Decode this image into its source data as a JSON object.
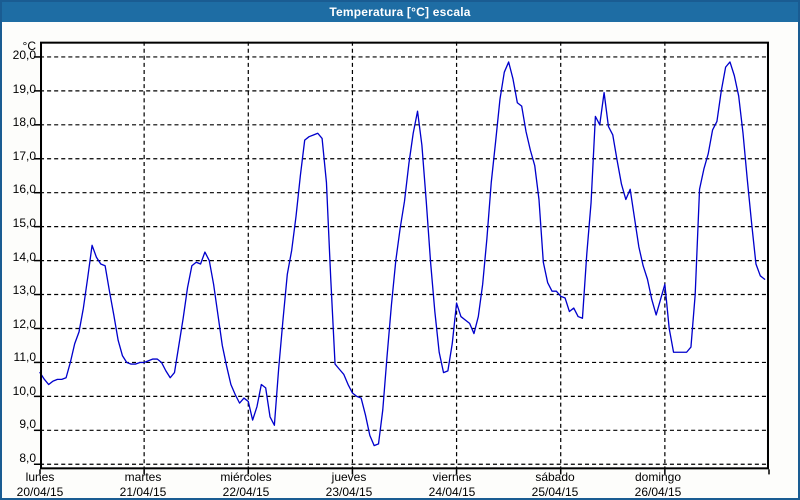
{
  "window": {
    "title": "Temperatura [°C] escala"
  },
  "colors": {
    "titlebar_bg": "#1e6da4",
    "titlebar_text": "#ffffff",
    "window_border": "#1a5c92",
    "content_bg": "#fdfdfb",
    "plot_bg": "#ffffff",
    "axis": "#000000",
    "grid": "#000000",
    "line": "#0000cc",
    "label_text": "#000000"
  },
  "chart_data": {
    "type": "line",
    "title": "Temperatura [°C] escala",
    "y_unit_label": "°C",
    "ylabel": "Temperatura [°C]",
    "xlabel": "",
    "ylim": [
      7.85,
      20.45
    ],
    "grid": "dashed",
    "legend": "none",
    "sampling": "hourly",
    "yticks": [
      {
        "value": 20,
        "label": "20,0"
      },
      {
        "value": 19,
        "label": "19,0"
      },
      {
        "value": 18,
        "label": "18,0"
      },
      {
        "value": 17,
        "label": "17,0"
      },
      {
        "value": 16,
        "label": "16,0"
      },
      {
        "value": 15,
        "label": "15,0"
      },
      {
        "value": 14,
        "label": "14,0"
      },
      {
        "value": 13,
        "label": "13,0"
      },
      {
        "value": 12,
        "label": "12,0"
      },
      {
        "value": 11,
        "label": "11,0"
      },
      {
        "value": 10,
        "label": "10,0"
      },
      {
        "value": 9,
        "label": "9,0"
      },
      {
        "value": 8,
        "label": "8,0"
      }
    ],
    "x_days": [
      {
        "name": "lunes",
        "date": "20/04/15"
      },
      {
        "name": "martes",
        "date": "21/04/15"
      },
      {
        "name": "miércoles",
        "date": "22/04/15"
      },
      {
        "name": "jueves",
        "date": "23/04/15"
      },
      {
        "name": "viernes",
        "date": "24/04/15"
      },
      {
        "name": "sábado",
        "date": "25/04/15"
      },
      {
        "name": "domingo",
        "date": "26/04/15"
      }
    ],
    "series": [
      {
        "name": "Temperatura [°C]",
        "color": "#0000cc",
        "values": [
          10.7,
          10.5,
          10.35,
          10.45,
          10.5,
          10.5,
          10.55,
          11.0,
          11.55,
          11.9,
          12.6,
          13.5,
          14.45,
          14.1,
          13.9,
          13.85,
          13.1,
          12.4,
          11.65,
          11.2,
          11.0,
          10.95,
          10.95,
          11.0,
          11.0,
          11.05,
          11.1,
          11.1,
          11.0,
          10.75,
          10.55,
          10.7,
          11.5,
          12.3,
          13.2,
          13.85,
          13.95,
          13.9,
          14.25,
          14.0,
          13.3,
          12.4,
          11.5,
          10.9,
          10.35,
          10.05,
          9.8,
          9.95,
          9.85,
          9.3,
          9.7,
          10.35,
          10.25,
          9.4,
          9.15,
          10.8,
          12.25,
          13.6,
          14.3,
          15.3,
          16.5,
          17.55,
          17.65,
          17.7,
          17.75,
          17.6,
          16.3,
          13.5,
          10.95,
          10.8,
          10.65,
          10.35,
          10.1,
          10.0,
          9.95,
          9.45,
          8.85,
          8.55,
          8.6,
          9.6,
          11.2,
          12.7,
          14.0,
          14.95,
          15.75,
          16.85,
          17.75,
          18.4,
          17.4,
          15.75,
          13.95,
          12.5,
          11.3,
          10.7,
          10.75,
          11.55,
          12.75,
          12.35,
          12.25,
          12.15,
          11.85,
          12.35,
          13.3,
          14.65,
          16.3,
          17.5,
          18.75,
          19.55,
          19.85,
          19.35,
          18.65,
          18.55,
          17.8,
          17.25,
          16.8,
          15.8,
          13.95,
          13.35,
          13.1,
          13.1,
          12.95,
          12.9,
          12.5,
          12.6,
          12.35,
          12.3,
          14.2,
          15.7,
          18.25,
          18.0,
          18.95,
          17.95,
          17.7,
          16.95,
          16.25,
          15.8,
          16.1,
          15.25,
          14.4,
          13.85,
          13.45,
          12.85,
          12.4,
          12.85,
          13.3,
          12.0,
          11.3,
          11.3,
          11.3,
          11.3,
          11.45,
          13.0,
          16.1,
          16.7,
          17.15,
          17.85,
          18.1,
          19.0,
          19.7,
          19.85,
          19.45,
          18.85,
          17.75,
          16.4,
          15.1,
          13.9,
          13.55,
          13.45
        ]
      }
    ]
  }
}
